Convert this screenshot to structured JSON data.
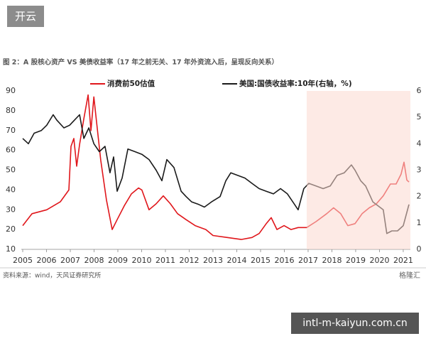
{
  "header": {
    "badge": "开云"
  },
  "footer": {
    "url": "intl-m-kaiyun.com.cn",
    "brand": "格隆汇"
  },
  "chart_data": {
    "type": "line",
    "title": "图 2：A 股核心资产 VS 美债收益率（17 年之前无关、17 年外资流入后，呈现反向关系）",
    "source": "资料来源：wind，天风证券研究所",
    "legend": "top",
    "shaded_region": [
      2016.94,
      2021.3
    ],
    "shaded_color": "#fbd9cf",
    "xlim": [
      2004.94,
      2021.3
    ],
    "xticks": [
      2005,
      2006,
      2007,
      2008,
      2009,
      2010,
      2011,
      2012,
      2013,
      2014,
      2015,
      2016,
      2017,
      2018,
      2019,
      2020,
      2021
    ],
    "ylim": [
      10,
      90
    ],
    "yticks": [
      10,
      20,
      30,
      40,
      50,
      60,
      70,
      80,
      90
    ],
    "y2lim": [
      0,
      6
    ],
    "y2ticks": [
      0,
      1,
      2,
      3,
      4,
      5,
      6
    ],
    "series": [
      {
        "name": "消费前50估值",
        "color": "#e0161b",
        "axis": "y",
        "x": [
          2005.0,
          2005.39,
          2006.01,
          2006.58,
          2006.94,
          2007.03,
          2007.15,
          2007.27,
          2007.39,
          2007.57,
          2007.75,
          2007.87,
          2007.99,
          2008.1,
          2008.28,
          2008.52,
          2008.76,
          2008.97,
          2009.27,
          2009.57,
          2009.87,
          2010.01,
          2010.31,
          2010.61,
          2010.91,
          2011.21,
          2011.51,
          2011.87,
          2012.25,
          2012.7,
          2013.0,
          2013.6,
          2014.19,
          2014.64,
          2014.94,
          2015.24,
          2015.45,
          2015.69,
          2015.99,
          2016.28,
          2016.58,
          2016.94,
          2017.33,
          2017.78,
          2018.07,
          2018.37,
          2018.67,
          2018.97,
          2019.27,
          2019.57,
          2019.87,
          2020.16,
          2020.46,
          2020.7,
          2020.91,
          2021.03,
          2021.15,
          2021.24
        ],
        "values": [
          22,
          28,
          30,
          34,
          40,
          62,
          66,
          52,
          63,
          76,
          88,
          70,
          87,
          75,
          55,
          35,
          20,
          25,
          32,
          38,
          41,
          40,
          30,
          33,
          37,
          33,
          28,
          25,
          22,
          20,
          17,
          16,
          15,
          16,
          18,
          23,
          26,
          20,
          22,
          20,
          21,
          21,
          24,
          28,
          31,
          28,
          22,
          23,
          28,
          31,
          33,
          37,
          43,
          43,
          48,
          54,
          45,
          44
        ]
      },
      {
        "name": "美国:国债收益率:10年(右轴，%)",
        "color": "#1a1a1a",
        "axis": "y2",
        "x": [
          2005.0,
          2005.24,
          2005.48,
          2005.78,
          2006.01,
          2006.28,
          2006.43,
          2006.73,
          2006.97,
          2007.18,
          2007.39,
          2007.57,
          2007.78,
          2007.99,
          2008.22,
          2008.46,
          2008.67,
          2008.82,
          2008.97,
          2009.18,
          2009.42,
          2009.72,
          2010.01,
          2010.31,
          2010.61,
          2010.85,
          2011.06,
          2011.36,
          2011.66,
          2011.87,
          2012.1,
          2012.4,
          2012.64,
          2012.94,
          2013.3,
          2013.54,
          2013.75,
          2014.04,
          2014.34,
          2014.64,
          2014.94,
          2015.24,
          2015.54,
          2015.84,
          2016.13,
          2016.43,
          2016.58,
          2016.82,
          2017.03,
          2017.33,
          2017.63,
          2017.93,
          2018.22,
          2018.52,
          2018.82,
          2018.97,
          2019.21,
          2019.42,
          2019.72,
          2020.01,
          2020.16,
          2020.31,
          2020.52,
          2020.76,
          2021.0,
          2021.15,
          2021.24
        ],
        "values": [
          4.2,
          4.0,
          4.4,
          4.5,
          4.7,
          5.1,
          4.9,
          4.6,
          4.7,
          4.9,
          5.1,
          4.2,
          4.6,
          4.0,
          3.7,
          3.9,
          2.9,
          3.5,
          2.2,
          2.7,
          3.8,
          3.7,
          3.6,
          3.4,
          3.0,
          2.6,
          3.4,
          3.1,
          2.2,
          2.0,
          1.8,
          1.7,
          1.6,
          1.8,
          2.0,
          2.6,
          2.9,
          2.8,
          2.7,
          2.5,
          2.3,
          2.2,
          2.1,
          2.3,
          2.1,
          1.7,
          1.5,
          2.3,
          2.5,
          2.4,
          2.3,
          2.4,
          2.8,
          2.9,
          3.2,
          3.0,
          2.6,
          2.4,
          1.8,
          1.6,
          1.5,
          0.6,
          0.7,
          0.7,
          0.9,
          1.4,
          1.7
        ]
      }
    ]
  }
}
